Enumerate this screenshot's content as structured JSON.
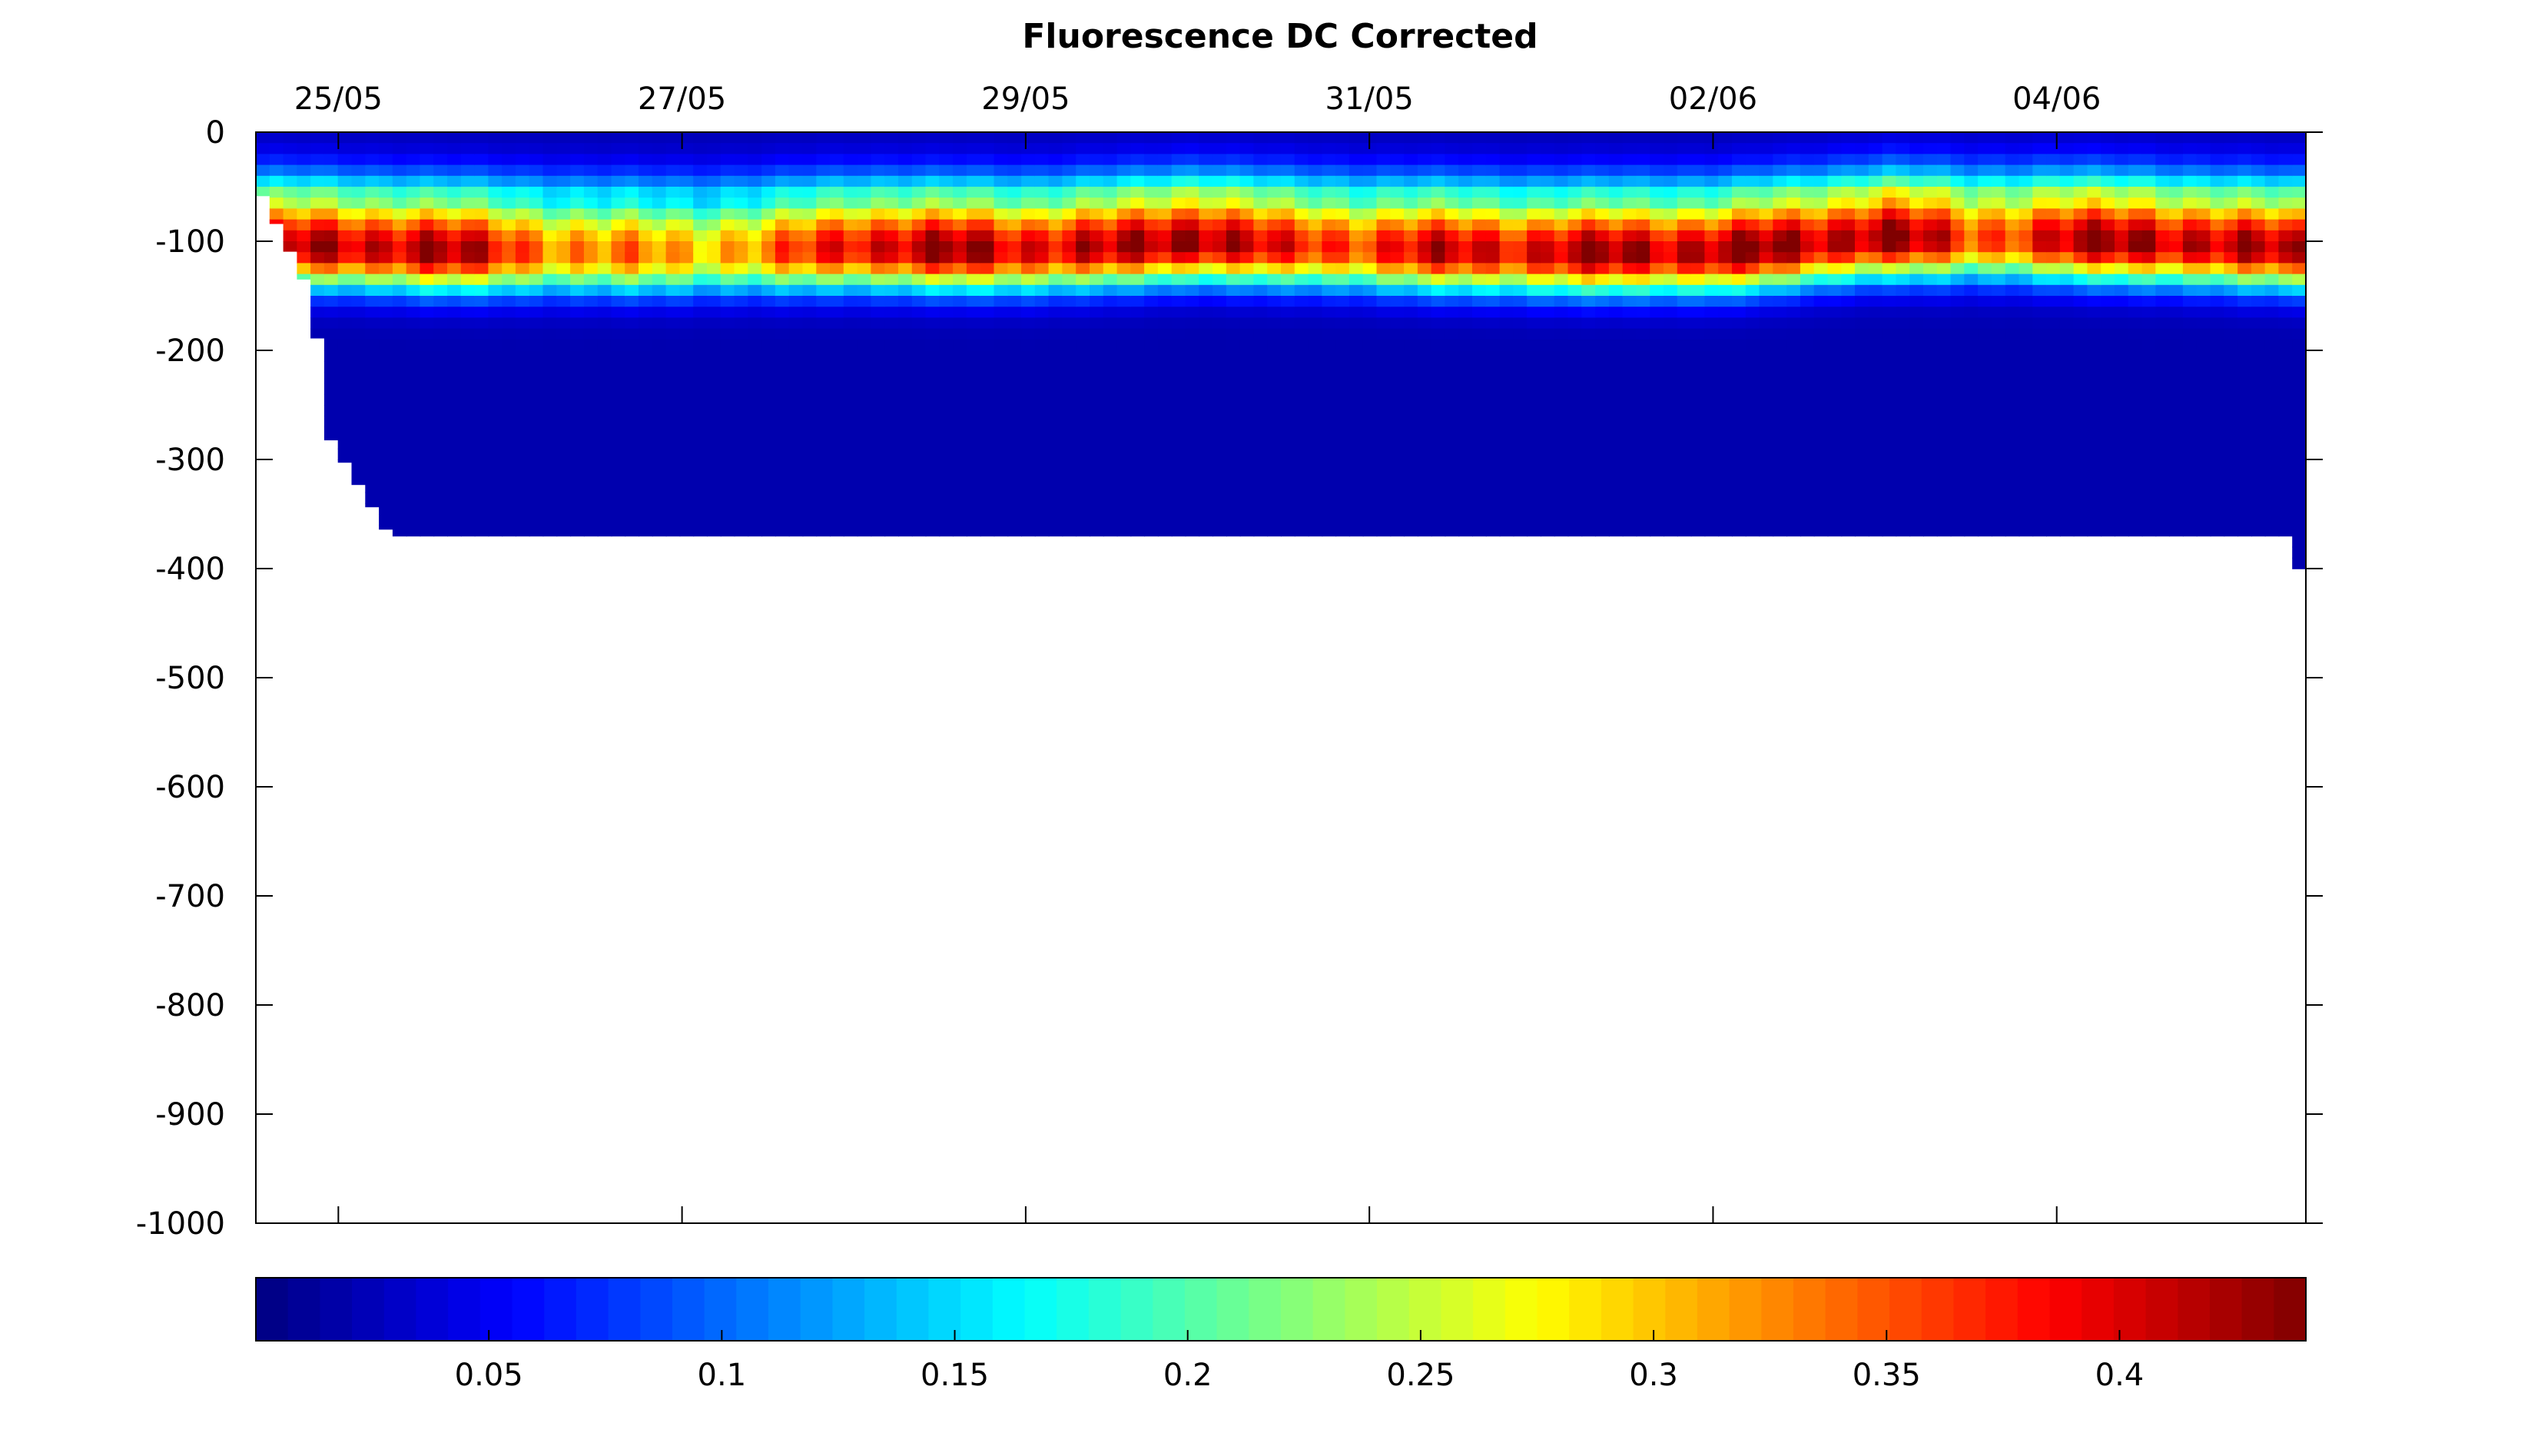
{
  "chart_data": {
    "type": "heatmap",
    "title": "Fluorescence DC Corrected",
    "xlabel": "",
    "ylabel": "",
    "x_tick_labels": [
      "25/05",
      "27/05",
      "29/05",
      "31/05",
      "02/06",
      "04/06"
    ],
    "x_range_days_from_24_05": [
      0.52,
      12.45
    ],
    "x_tick_positions_days_from_24_05": [
      1,
      3,
      5,
      7,
      9,
      11
    ],
    "y_tick_values": [
      0,
      -100,
      -200,
      -300,
      -400,
      -500,
      -600,
      -700,
      -800,
      -900,
      -1000
    ],
    "ylim": [
      -1000,
      0
    ],
    "colorbar": {
      "placement": "bottom",
      "colormap": "jet",
      "range": [
        0,
        0.44
      ],
      "tick_values": [
        0.05,
        0.1,
        0.15,
        0.2,
        0.25,
        0.3,
        0.35,
        0.4
      ],
      "tick_labels": [
        "0.05",
        "0.1",
        "0.15",
        "0.2",
        "0.25",
        "0.3",
        "0.35",
        "0.4"
      ]
    },
    "profile_bottom_depth": [
      {
        "x": 0.55,
        "depth": -55
      },
      {
        "x": 0.8,
        "depth": -135
      },
      {
        "x": 0.88,
        "depth": -190
      },
      {
        "x": 0.95,
        "depth": -280
      },
      {
        "x": 1.3,
        "depth": -370
      },
      {
        "x": 12.35,
        "depth": -370
      },
      {
        "x": 12.4,
        "depth": -400
      }
    ],
    "chlorophyll_max_layer": {
      "depth_center": [
        {
          "x": 0.6,
          "depth": -105
        },
        {
          "x": 1.5,
          "depth": -110
        },
        {
          "x": 3.0,
          "depth": -112
        },
        {
          "x": 4.0,
          "depth": -108
        },
        {
          "x": 5.0,
          "depth": -110
        },
        {
          "x": 6.0,
          "depth": -102
        },
        {
          "x": 7.0,
          "depth": -108
        },
        {
          "x": 8.0,
          "depth": -112
        },
        {
          "x": 9.0,
          "depth": -112
        },
        {
          "x": 10.0,
          "depth": -98
        },
        {
          "x": 11.0,
          "depth": -100
        },
        {
          "x": 12.4,
          "depth": -108
        }
      ],
      "peak_value": [
        {
          "x": 0.6,
          "value": 0.38
        },
        {
          "x": 1.5,
          "value": 0.41
        },
        {
          "x": 2.5,
          "value": 0.3
        },
        {
          "x": 3.5,
          "value": 0.3
        },
        {
          "x": 4.0,
          "value": 0.39
        },
        {
          "x": 4.6,
          "value": 0.4
        },
        {
          "x": 5.5,
          "value": 0.38
        },
        {
          "x": 6.0,
          "value": 0.43
        },
        {
          "x": 6.5,
          "value": 0.35
        },
        {
          "x": 7.0,
          "value": 0.36
        },
        {
          "x": 7.5,
          "value": 0.38
        },
        {
          "x": 8.5,
          "value": 0.4
        },
        {
          "x": 9.0,
          "value": 0.41
        },
        {
          "x": 9.5,
          "value": 0.4
        },
        {
          "x": 10.0,
          "value": 0.42
        },
        {
          "x": 10.5,
          "value": 0.34
        },
        {
          "x": 11.0,
          "value": 0.38
        },
        {
          "x": 11.5,
          "value": 0.42
        },
        {
          "x": 12.0,
          "value": 0.38
        },
        {
          "x": 12.4,
          "value": 0.4
        }
      ],
      "background_value": 0.02
    }
  }
}
